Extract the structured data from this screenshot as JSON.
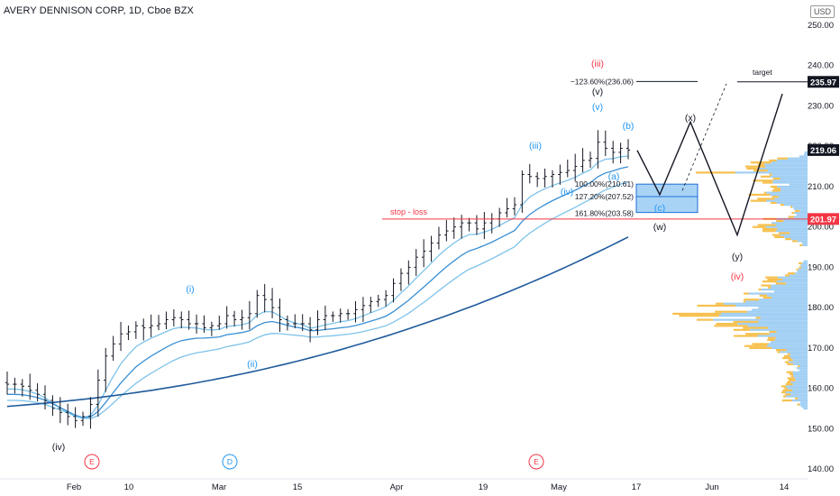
{
  "header": {
    "title": "AVERY DENNISON CORP, 1D, Cboe BZX",
    "currency": "USD"
  },
  "price_axis": {
    "ticks": [
      "250.00",
      "240.00",
      "230.00",
      "220.00",
      "210.00",
      "200.00",
      "190.00",
      "180.00",
      "170.00",
      "160.00",
      "150.00",
      "140.00"
    ],
    "badges": [
      {
        "label": "235.97",
        "bg": "#131722"
      },
      {
        "label": "219.06",
        "bg": "#131722"
      },
      {
        "label": "201.97",
        "bg": "#f23645"
      }
    ]
  },
  "time_axis": {
    "labels": [
      "Feb",
      "10",
      "Mar",
      "15",
      "Apr",
      "19",
      "May",
      "17",
      "Jun",
      "14"
    ]
  },
  "events": [
    "E",
    "D",
    "E"
  ],
  "fib_labels": [
    "−123.60%(236.06)",
    "100.00%(210.61)",
    "127.20%(207.52)",
    "161.80%(203.58)"
  ],
  "annotations": {
    "stop_loss": "stop - loss",
    "target": "target"
  },
  "waves": {
    "black": [
      "(iv)",
      "(v)",
      "(x)",
      "(w)",
      "(y)"
    ],
    "blue": [
      "(i)",
      "(ii)",
      "(iii)",
      "(iv)",
      "(v)",
      "(a)",
      "(b)",
      "(c)"
    ],
    "red": [
      "(iii)",
      "(iv)"
    ]
  },
  "colors": {
    "candle": "#131722",
    "ma_light": "#7ec3ea",
    "ma_mid": "#3a8fd4",
    "ma_dark": "#1e5a9b",
    "stop": "#f23645",
    "vp_blue": "#90c7f2",
    "vp_orange": "#f6b93b",
    "box": "#a9d3f5"
  },
  "chart_data": {
    "type": "candlestick",
    "title": "AVERY DENNISON CORP, 1D, Cboe BZX",
    "ylim": [
      140,
      252
    ],
    "yticks": [
      250,
      240,
      230,
      220,
      210,
      200,
      190,
      180,
      170,
      160,
      150,
      140
    ],
    "x_labels": [
      "Feb",
      "10",
      "Mar",
      "15",
      "Apr",
      "19",
      "May",
      "17",
      "Jun",
      "14"
    ],
    "closes": [
      161,
      161,
      160.5,
      159.5,
      158.5,
      157,
      155,
      154,
      153,
      152,
      153,
      156,
      162,
      168,
      171,
      173.5,
      174,
      175.5,
      175,
      175.5,
      176,
      177,
      177.5,
      177,
      176,
      176,
      175,
      175.5,
      176,
      178,
      177,
      177.5,
      178.5,
      183,
      182,
      180,
      177,
      176,
      176,
      176,
      174.5,
      177,
      178,
      178,
      178.5,
      178.5,
      179.5,
      180.5,
      181.5,
      182,
      183,
      186,
      188.5,
      190,
      192.5,
      194,
      196,
      198,
      199,
      200,
      201,
      201,
      199.5,
      201,
      202,
      203.5,
      204.5,
      205.5,
      213,
      212.5,
      212,
      212.5,
      213,
      213.5,
      214,
      215,
      216.5,
      217,
      221,
      219.5,
      218.5,
      219.5,
      219.06
    ],
    "ema_fast": "moving average bands (3 light blue + 1 dark blue)",
    "key_levels": {
      "target": 235.97,
      "last": 219.06,
      "stop_loss": 201.97
    },
    "fibonacci": [
      236.06,
      210.61,
      207.52,
      203.58
    ]
  }
}
